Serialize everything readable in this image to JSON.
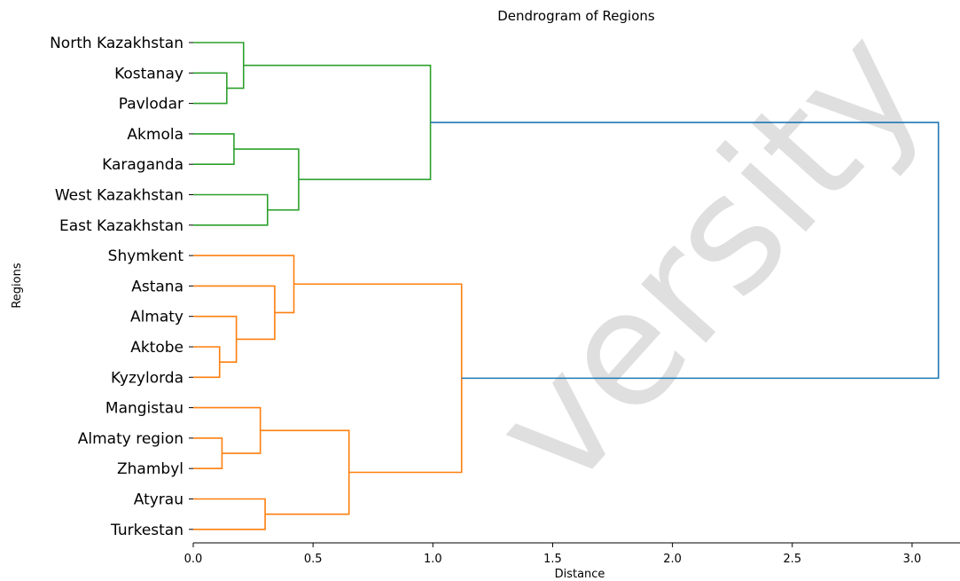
{
  "chart_data": {
    "type": "dendrogram",
    "title": "Dendrogram of Regions",
    "xlabel": "Distance",
    "ylabel": "Regions",
    "xlim": [
      0.0,
      3.2
    ],
    "xticks": [
      "0.0",
      "0.5",
      "1.0",
      "1.5",
      "2.0",
      "2.5",
      "3.0"
    ],
    "xtick_values": [
      0.0,
      0.5,
      1.0,
      1.5,
      2.0,
      2.5,
      3.0
    ],
    "leaves": [
      "North Kazakhstan",
      "Kostanay",
      "Pavlodar",
      "Akmola",
      "Karaganda",
      "West Kazakhstan",
      "East Kazakhstan",
      "Shymkent",
      "Astana",
      "Almaty",
      "Aktobe",
      "Kyzylorda",
      "Mangistau",
      "Almaty region",
      "Zhambyl",
      "Atyrau",
      "Turkestan"
    ],
    "colors": {
      "cluster_1": "#2ca02c",
      "cluster_2": "#ff7f0e",
      "root": "#1f77b4"
    },
    "links": [
      {
        "a": "Kostanay",
        "b": "Pavlodar",
        "distance": 0.14,
        "color": "cluster_1"
      },
      {
        "a": "North Kazakhstan",
        "b": 0,
        "distance": 0.21,
        "color": "cluster_1"
      },
      {
        "a": "Akmola",
        "b": "Karaganda",
        "distance": 0.17,
        "color": "cluster_1"
      },
      {
        "a": "West Kazakhstan",
        "b": "East Kazakhstan",
        "distance": 0.31,
        "color": "cluster_1"
      },
      {
        "a": 2,
        "b": 3,
        "distance": 0.44,
        "color": "cluster_1"
      },
      {
        "a": 1,
        "b": 4,
        "distance": 0.99,
        "color": "cluster_1"
      },
      {
        "a": "Aktobe",
        "b": "Kyzylorda",
        "distance": 0.11,
        "color": "cluster_2"
      },
      {
        "a": "Almaty",
        "b": 6,
        "distance": 0.18,
        "color": "cluster_2"
      },
      {
        "a": "Astana",
        "b": 7,
        "distance": 0.34,
        "color": "cluster_2"
      },
      {
        "a": "Shymkent",
        "b": 8,
        "distance": 0.42,
        "color": "cluster_2"
      },
      {
        "a": "Almaty region",
        "b": "Zhambyl",
        "distance": 0.12,
        "color": "cluster_2"
      },
      {
        "a": "Mangistau",
        "b": 10,
        "distance": 0.28,
        "color": "cluster_2"
      },
      {
        "a": "Atyrau",
        "b": "Turkestan",
        "distance": 0.3,
        "color": "cluster_2"
      },
      {
        "a": 11,
        "b": 12,
        "distance": 0.65,
        "color": "cluster_2"
      },
      {
        "a": 9,
        "b": 13,
        "distance": 1.12,
        "color": "cluster_2"
      },
      {
        "a": 5,
        "b": 14,
        "distance": 3.11,
        "color": "root"
      }
    ]
  },
  "watermark": "versity"
}
